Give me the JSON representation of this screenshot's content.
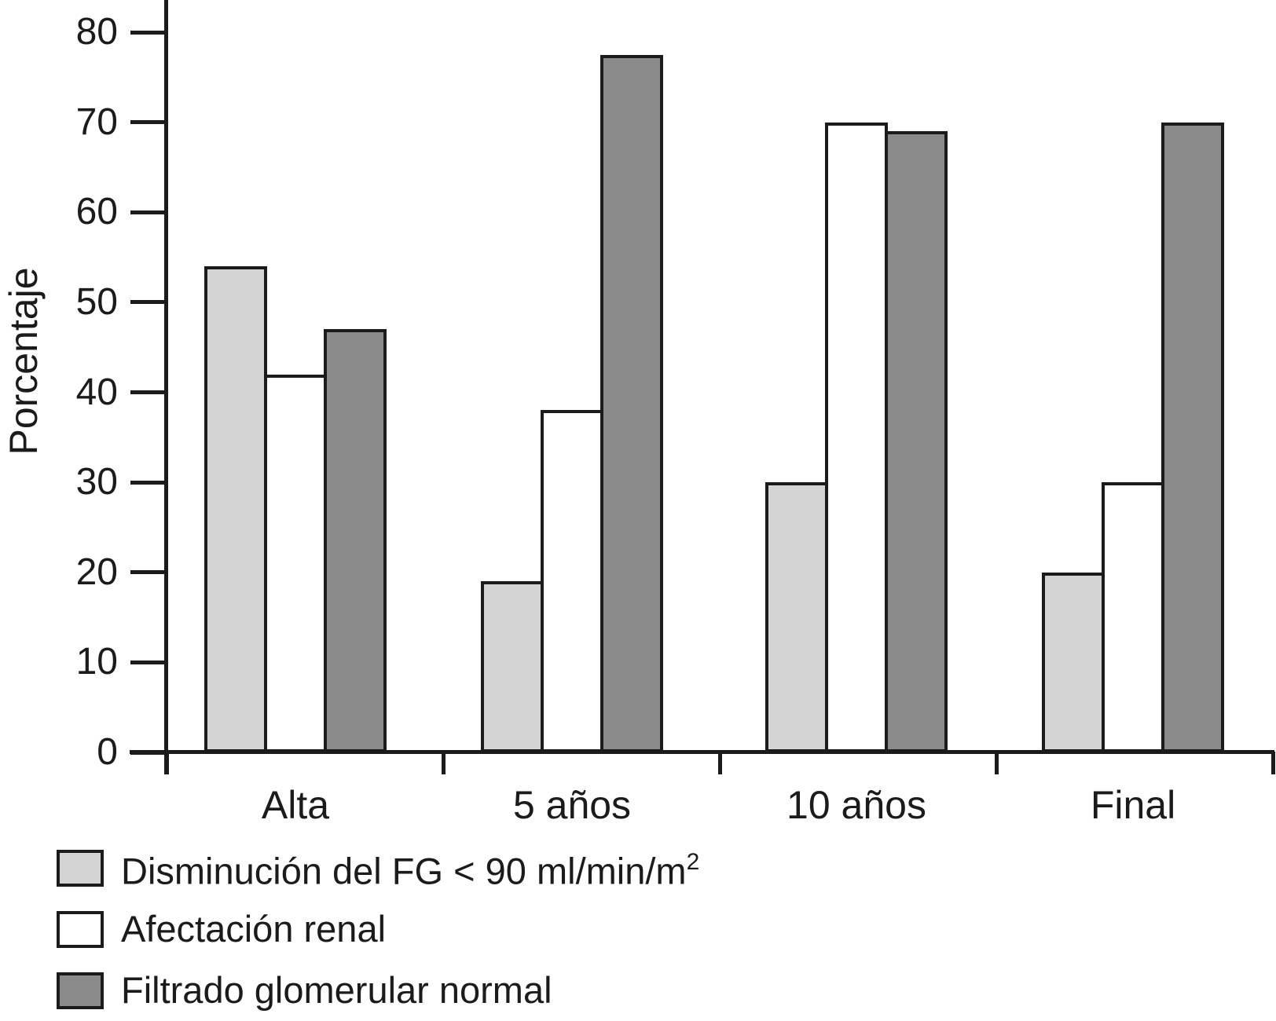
{
  "chart_data": {
    "type": "bar",
    "title": "",
    "ylabel": "Porcentaje",
    "xlabel": "",
    "categories": [
      "Alta",
      "5 años",
      "10 años",
      "Final"
    ],
    "series": [
      {
        "name": "Disminución del FG < 90 ml/min/m2",
        "color": "#d4d4d4",
        "values": [
          54,
          19,
          30,
          20
        ]
      },
      {
        "name": "Afectación renal",
        "color": "#ffffff",
        "values": [
          42,
          38,
          70,
          30
        ]
      },
      {
        "name": "Filtrado glomerular normal",
        "color": "#8a8a8a",
        "values": [
          47,
          77.5,
          69,
          70
        ]
      }
    ],
    "ylim": [
      0,
      80
    ],
    "yticks": [
      0,
      10,
      20,
      30,
      40,
      50,
      60,
      70,
      80
    ],
    "grid": false,
    "legend_position": "bottom-left",
    "legend": [
      {
        "text": "Disminución del FG < 90 ml/min/m",
        "sup": "2",
        "swatch": "#d4d4d4"
      },
      {
        "text": "Afectación renal",
        "sup": "",
        "swatch": "#ffffff"
      },
      {
        "text": "Filtrado glomerular normal",
        "sup": "",
        "swatch": "#8a8a8a"
      }
    ],
    "axis_color": "#1b1b1b",
    "background": "#ffffff"
  }
}
